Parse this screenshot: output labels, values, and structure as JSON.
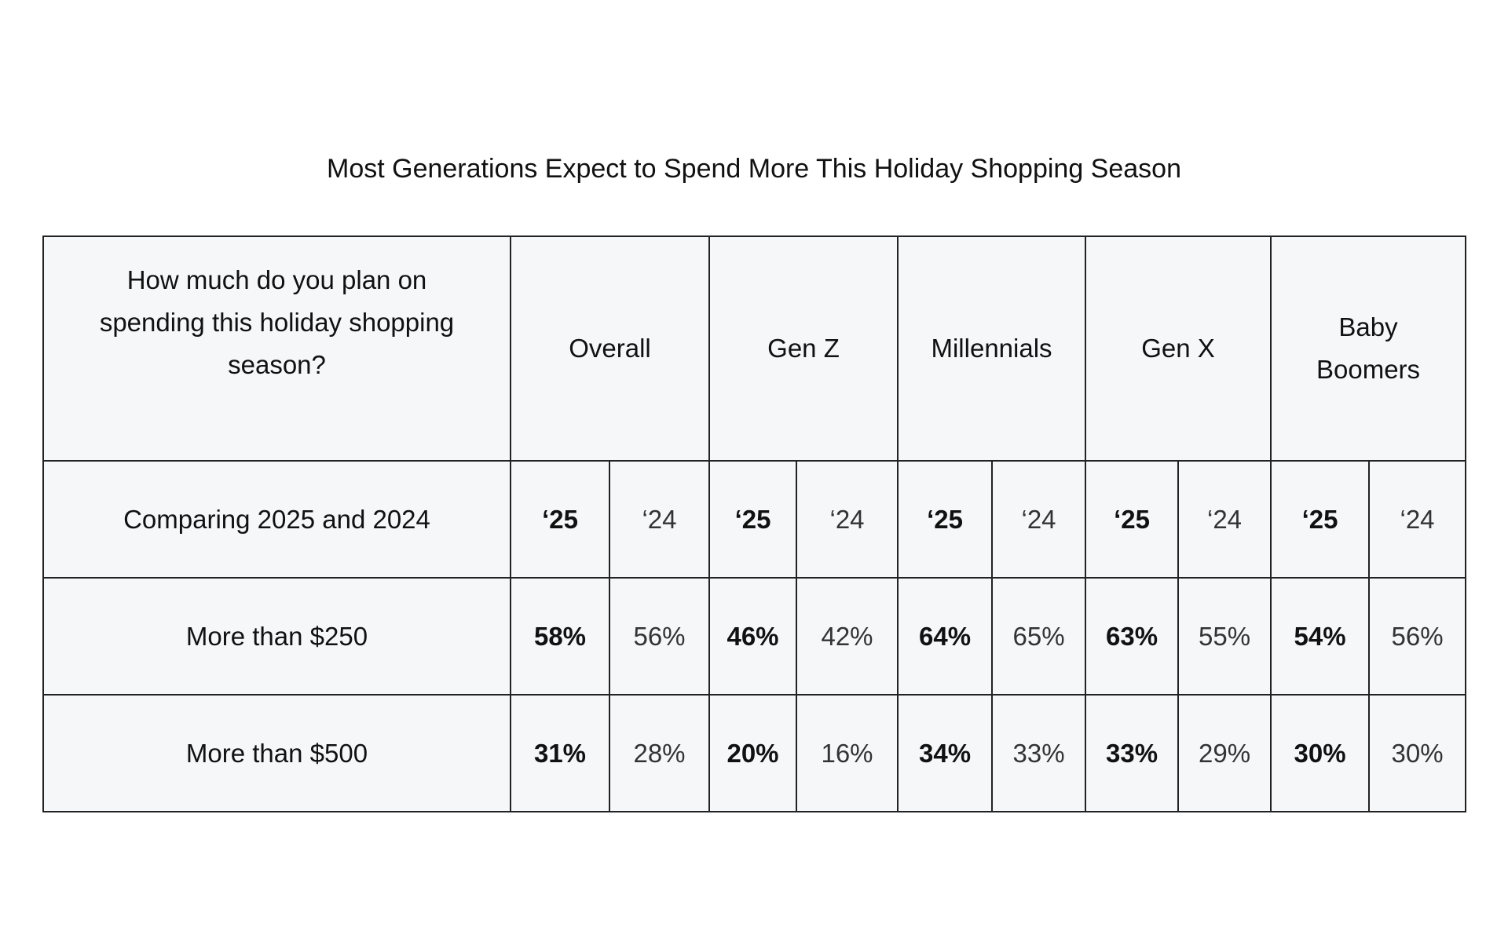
{
  "title": "Most Generations Expect to Spend More This Holiday Shopping Season",
  "table": {
    "corner_header": "How much do you plan on spending this holiday shopping season?",
    "groups": [
      "Overall",
      "Gen Z",
      "Millennials",
      "Gen X",
      "Baby Boomers"
    ],
    "subheader_label": "Comparing 2025 and 2024",
    "year_labels": [
      "‘25",
      "‘24"
    ],
    "rows": [
      {
        "label": "More than $250",
        "values": [
          "58%",
          "56%",
          "46%",
          "42%",
          "64%",
          "65%",
          "63%",
          "55%",
          "54%",
          "56%"
        ]
      },
      {
        "label": "More than $500",
        "values": [
          "31%",
          "28%",
          "20%",
          "16%",
          "34%",
          "33%",
          "33%",
          "29%",
          "30%",
          "30%"
        ]
      }
    ]
  }
}
